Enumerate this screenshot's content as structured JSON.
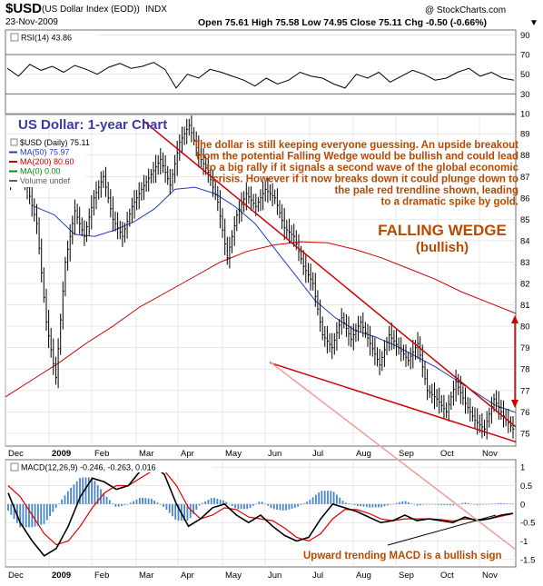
{
  "header": {
    "symbol": "$USD",
    "name": "(US Dollar Index (EOD))",
    "exchange": "INDX",
    "date": "23-Nov-2009",
    "brand": "@ StockCharts.com",
    "ohlc": "Open 75.61  High 75.58  Low 74.95  Close 75.11  Chg -0.50 (-0.66%)",
    "ohlc_arrow": "▼"
  },
  "chart_data": [
    {
      "type": "line",
      "panel": "rsi",
      "label": "RSI(14) 43.86",
      "y_ticks": [
        10,
        30,
        50,
        70,
        90
      ],
      "ylim": [
        10,
        95
      ],
      "reference_lines": [
        30,
        70
      ],
      "series": [
        {
          "name": "RSI(14)",
          "values": [
            56,
            48,
            60,
            54,
            58,
            52,
            59,
            55,
            50,
            57,
            61,
            56,
            58,
            62,
            55,
            36,
            50,
            46,
            55,
            52,
            48,
            44,
            38,
            46,
            40,
            44,
            52,
            48,
            46,
            40,
            36,
            50,
            46,
            52,
            42,
            48,
            54,
            50,
            44,
            46,
            52,
            56,
            48,
            52,
            46,
            44
          ],
          "color": "#000000"
        }
      ]
    },
    {
      "type": "line",
      "panel": "price",
      "title": "US Dollar: 1-year Chart",
      "x_labels": [
        "Dec",
        "2009",
        "Feb",
        "Mar",
        "Apr",
        "May",
        "Jun",
        "Jul",
        "Aug",
        "Sep",
        "Oct",
        "Nov"
      ],
      "y_ticks": [
        75,
        76,
        77,
        78,
        79,
        80,
        81,
        82,
        83,
        84,
        85,
        86,
        87,
        88,
        89
      ],
      "ylim": [
        74.4,
        89.9
      ],
      "legend": [
        {
          "text": "$USD (Daily) 75.11",
          "color": "#000000"
        },
        {
          "text": "MA(50) 75.97",
          "color": "#1f3fbf"
        },
        {
          "text": "MA(200) 80.60",
          "color": "#d00000"
        },
        {
          "text": "MA(0) 0.00",
          "color": "#0a8a0a"
        },
        {
          "text": "Volume undef",
          "color": "#606060"
        }
      ],
      "series": [
        {
          "name": "$USD (Daily)",
          "color": "#000000",
          "values": [
            86.9,
            87.6,
            86.5,
            84.8,
            80.2,
            77.6,
            83.0,
            85.4,
            84.2,
            86.0,
            87.0,
            85.0,
            84.2,
            85.6,
            86.4,
            87.1,
            87.8,
            86.6,
            88.6,
            89.4,
            88.0,
            87.2,
            85.8,
            83.2,
            85.2,
            86.2,
            85.6,
            86.4,
            86.0,
            84.6,
            84.2,
            82.8,
            82.0,
            79.6,
            79.0,
            80.4,
            79.4,
            80.2,
            79.2,
            78.2,
            79.6,
            79.0,
            78.4,
            79.2,
            77.0,
            76.6,
            76.0,
            77.4,
            76.4,
            75.6,
            75.2,
            76.6,
            75.8,
            75.2
          ]
        },
        {
          "name": "MA(50)",
          "color": "#1f3fbf",
          "values": [
            85.6,
            85.2,
            84.3,
            84.2,
            84.5,
            84.9,
            85.5,
            86.4,
            86.5,
            86.2,
            85.6,
            84.8,
            83.6,
            82.4,
            81.2,
            80.4,
            79.8,
            79.5,
            79.1,
            78.6,
            78.1,
            77.5,
            76.9,
            76.3,
            75.97
          ]
        },
        {
          "name": "MA(200)",
          "color": "#d00000",
          "values": [
            76.7,
            77.5,
            78.3,
            79.2,
            80.0,
            80.9,
            81.6,
            82.3,
            83.0,
            83.5,
            83.8,
            83.95,
            83.9,
            83.6,
            83.2,
            82.7,
            82.2,
            81.6,
            81.1,
            80.6
          ]
        }
      ],
      "annotations": [
        {
          "text": "The dollar is still keeping everyone guessing. An upside breakout",
          "color": "#b84a00"
        },
        {
          "text": "from the potential Falling Wedge would be bullish and could lead",
          "color": "#b84a00"
        },
        {
          "text": "to a big rally if it signals a second wave of the global economic",
          "color": "#b84a00"
        },
        {
          "text": "crisis. However if it now breaks down it could plunge down to",
          "color": "#b84a00"
        },
        {
          "text": "the pale red trendline shown, leading",
          "color": "#b84a00"
        },
        {
          "text": "to a dramatic spike by gold.",
          "color": "#b84a00"
        }
      ],
      "wedge_label": [
        "FALLING WEDGE",
        "(bullish)"
      ],
      "trendlines": [
        {
          "name": "wedge-upper",
          "from": [
            89.6
          ],
          "to": [
            75.3
          ],
          "color": "#d00000"
        },
        {
          "name": "wedge-lower",
          "from": [
            78.3
          ],
          "to": [
            74.6
          ],
          "color": "#d00000"
        },
        {
          "name": "pale-red-trendline",
          "color": "#f0a0a0"
        }
      ]
    },
    {
      "type": "line",
      "panel": "macd",
      "label": "MACD(12,26,9) -0.246, -0.263, 0.016",
      "x_labels": [
        "Dec",
        "2009",
        "Feb",
        "Mar",
        "Apr",
        "May",
        "Jun",
        "Jul",
        "Aug",
        "Sep",
        "Oct",
        "Nov"
      ],
      "y_ticks": [
        -1.5,
        -1.0,
        -0.5,
        0.0,
        0.5,
        1.0
      ],
      "ylim": [
        -1.7,
        1.2
      ],
      "annotation": "Upward trending MACD is a bullish sign",
      "series": [
        {
          "name": "MACD",
          "color": "#000000",
          "values": [
            0.3,
            -0.5,
            -1.0,
            -1.4,
            -1.2,
            -0.6,
            0.2,
            0.7,
            0.6,
            0.4,
            0.5,
            0.9,
            1.05,
            0.8,
            0.0,
            -0.6,
            -0.4,
            -0.1,
            0.0,
            -0.3,
            -0.5,
            -0.3,
            -0.6,
            -0.85,
            -1.0,
            -0.9,
            -0.4,
            0.0,
            -0.1,
            -0.2,
            -0.35,
            -0.5,
            -0.45,
            -0.3,
            -0.45,
            -0.4,
            -0.45,
            -0.5,
            -0.35,
            -0.45,
            -0.4,
            -0.3,
            -0.25
          ]
        },
        {
          "name": "Signal",
          "color": "#e00000",
          "values": [
            0.5,
            0.2,
            -0.3,
            -0.8,
            -1.1,
            -1.0,
            -0.6,
            -0.1,
            0.3,
            0.5,
            0.5,
            0.7,
            0.9,
            0.9,
            0.5,
            -0.1,
            -0.4,
            -0.3,
            -0.1,
            -0.15,
            -0.35,
            -0.4,
            -0.45,
            -0.65,
            -0.9,
            -1.0,
            -0.8,
            -0.4,
            -0.15,
            -0.15,
            -0.25,
            -0.4,
            -0.45,
            -0.4,
            -0.4,
            -0.4,
            -0.42,
            -0.46,
            -0.4,
            -0.42,
            -0.4,
            -0.33,
            -0.26
          ]
        }
      ]
    }
  ]
}
